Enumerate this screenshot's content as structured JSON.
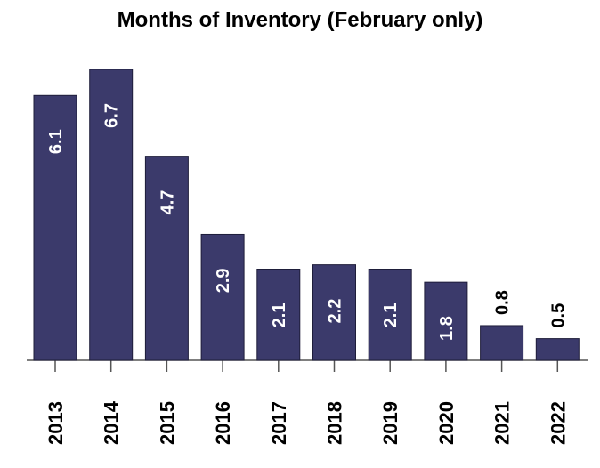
{
  "chart_data": {
    "type": "bar",
    "title": "Months of Inventory (February only)",
    "categories": [
      "2013",
      "2014",
      "2015",
      "2016",
      "2017",
      "2018",
      "2019",
      "2020",
      "2021",
      "2022"
    ],
    "values": [
      6.1,
      6.7,
      4.7,
      2.9,
      2.1,
      2.2,
      2.1,
      1.8,
      0.8,
      0.5
    ],
    "color": "#3b3a6b"
  }
}
